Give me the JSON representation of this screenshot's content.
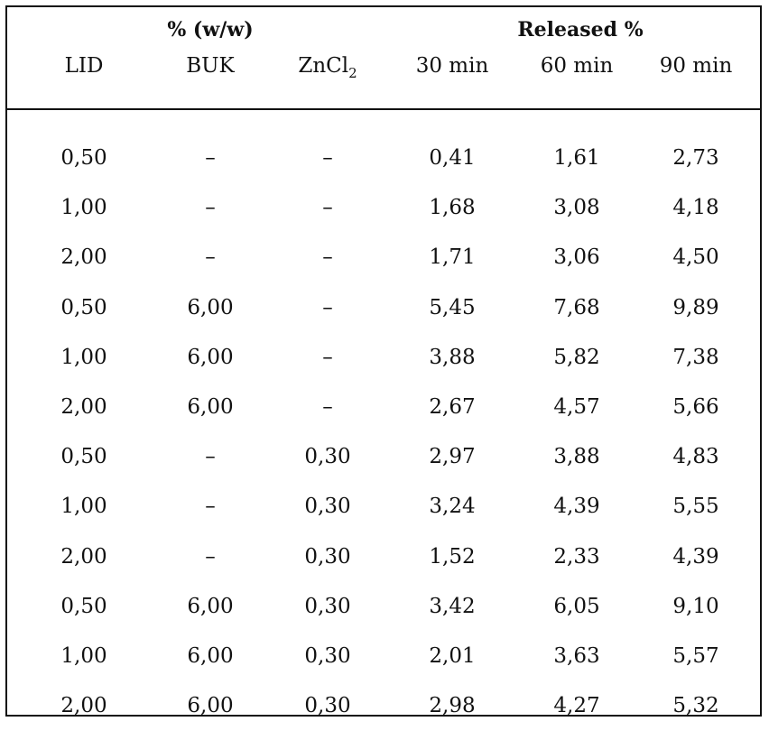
{
  "table": {
    "group_headers": {
      "weight": "% (w/w)",
      "released": "Released %"
    },
    "columns": {
      "lid": "LID",
      "buk": "BUK",
      "zncl_base": "ZnCl",
      "zncl_sub": "2",
      "t30": "30 min",
      "t60": "60 min",
      "t90": "90 min"
    },
    "rows": [
      [
        "0,50",
        "–",
        "–",
        "0,41",
        "1,61",
        "2,73"
      ],
      [
        "1,00",
        "–",
        "–",
        "1,68",
        "3,08",
        "4,18"
      ],
      [
        "2,00",
        "–",
        "–",
        "1,71",
        "3,06",
        "4,50"
      ],
      [
        "0,50",
        "6,00",
        "–",
        "5,45",
        "7,68",
        "9,89"
      ],
      [
        "1,00",
        "6,00",
        "–",
        "3,88",
        "5,82",
        "7,38"
      ],
      [
        "2,00",
        "6,00",
        "–",
        "2,67",
        "4,57",
        "5,66"
      ],
      [
        "0,50",
        "–",
        "0,30",
        "2,97",
        "3,88",
        "4,83"
      ],
      [
        "1,00",
        "–",
        "0,30",
        "3,24",
        "4,39",
        "5,55"
      ],
      [
        "2,00",
        "–",
        "0,30",
        "1,52",
        "2,33",
        "4,39"
      ],
      [
        "0,50",
        "6,00",
        "0,30",
        "3,42",
        "6,05",
        "9,10"
      ],
      [
        "1,00",
        "6,00",
        "0,30",
        "2,01",
        "3,63",
        "5,57"
      ],
      [
        "2,00",
        "6,00",
        "0,30",
        "2,98",
        "4,27",
        "5,32"
      ]
    ]
  }
}
